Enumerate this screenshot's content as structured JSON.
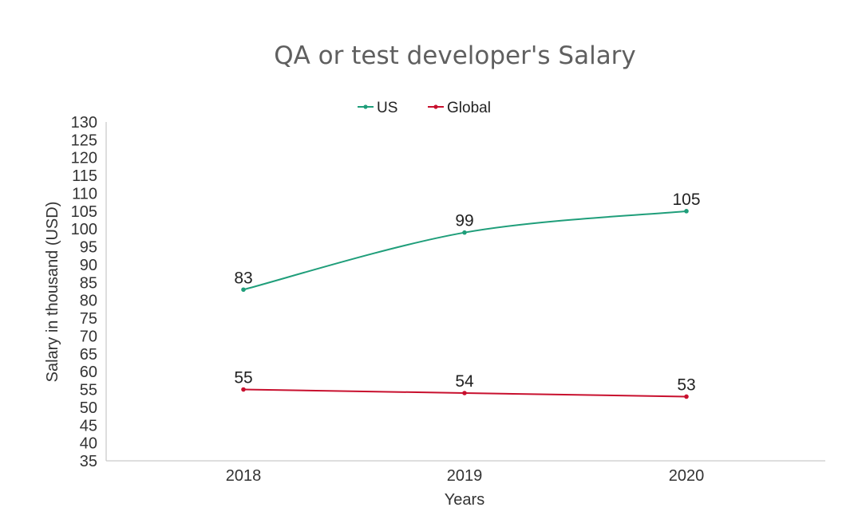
{
  "chart_data": {
    "type": "line",
    "title": "QA or test developer's Salary",
    "xlabel": "Years",
    "ylabel": "Salary in thousand (USD)",
    "categories": [
      "2018",
      "2019",
      "2020"
    ],
    "ylim": [
      35,
      130
    ],
    "yticks": [
      "35",
      "40",
      "45",
      "50",
      "55",
      "60",
      "65",
      "70",
      "75",
      "80",
      "85",
      "90",
      "95",
      "100",
      "105",
      "110",
      "115",
      "120",
      "125",
      "130"
    ],
    "legend_position": "top-center",
    "grid": false,
    "series": [
      {
        "name": "US",
        "values": [
          83,
          99,
          105
        ],
        "labels": [
          "83",
          "99",
          "105"
        ],
        "color": "#1f9e7a",
        "smooth": true
      },
      {
        "name": "Global",
        "values": [
          55,
          54,
          53
        ],
        "labels": [
          "55",
          "54",
          "53"
        ],
        "color": "#c8102e",
        "smooth": false
      }
    ]
  }
}
